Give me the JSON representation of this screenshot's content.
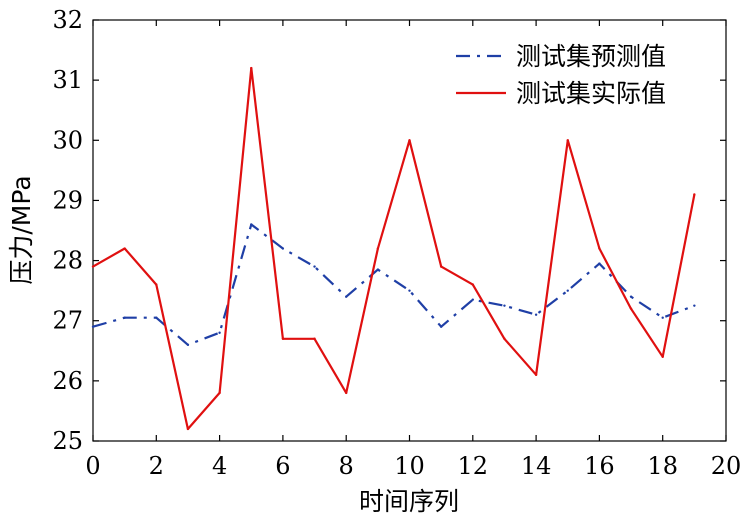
{
  "chart_data": {
    "type": "line",
    "xlabel": "时间序列",
    "ylabel": "压力/MPa",
    "xlim": [
      0,
      20
    ],
    "ylim": [
      25,
      32
    ],
    "xticks": [
      "0",
      "2",
      "4",
      "6",
      "8",
      "10",
      "12",
      "14",
      "16",
      "18",
      "20"
    ],
    "yticks": [
      "25",
      "26",
      "27",
      "28",
      "29",
      "30",
      "31",
      "32"
    ],
    "grid": false,
    "legend_position": "top-right",
    "x": [
      0,
      1,
      2,
      3,
      4,
      5,
      6,
      7,
      8,
      9,
      10,
      11,
      12,
      13,
      14,
      15,
      16,
      17,
      18,
      19
    ],
    "series": [
      {
        "name": "测试集预测值",
        "color": "#1f3fa6",
        "style": "dash-dot",
        "values": [
          26.9,
          27.05,
          27.05,
          26.6,
          26.8,
          28.6,
          28.2,
          27.9,
          27.4,
          27.85,
          27.5,
          26.9,
          27.35,
          27.25,
          27.1,
          27.5,
          27.95,
          27.4,
          27.05,
          27.25
        ]
      },
      {
        "name": "测试集实际值",
        "color": "#e01010",
        "style": "solid",
        "values": [
          27.9,
          28.2,
          27.6,
          25.2,
          25.8,
          31.2,
          26.7,
          26.7,
          25.8,
          28.2,
          30.0,
          27.9,
          27.6,
          26.7,
          26.1,
          30.0,
          28.2,
          27.2,
          26.4,
          29.1
        ]
      }
    ]
  }
}
